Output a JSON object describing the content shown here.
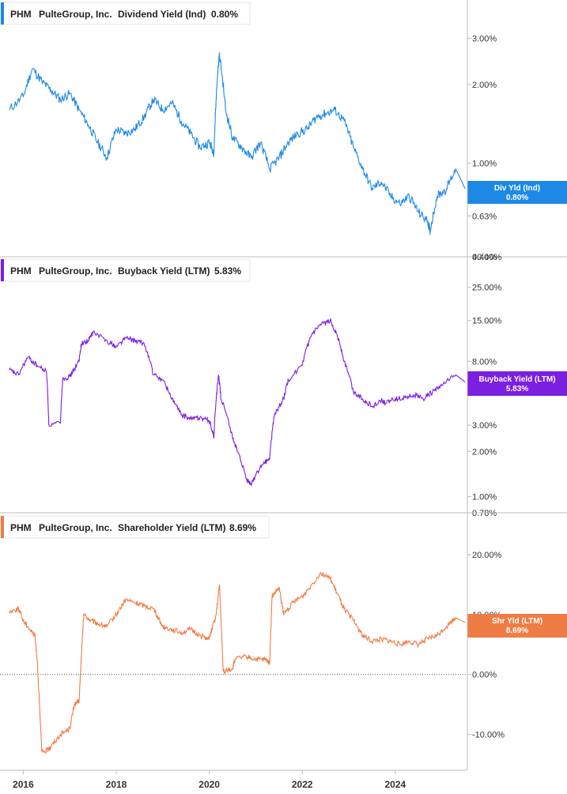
{
  "chart_data": [
    {
      "type": "line",
      "ticker": "PHM",
      "company": "PulteGroup, Inc.",
      "metric": "Dividend Yield (Ind)",
      "current_value": "0.80%",
      "badge_label": "Div Yld (Ind)",
      "badge_value": "0.80%",
      "color": "#1e88e5",
      "y_scale": "log",
      "ylim": [
        0.44,
        4.2
      ],
      "y_ticks": [
        0.44,
        0.63,
        1.0,
        2.0,
        3.0
      ],
      "y_tick_labels": [
        "0.44%",
        "0.63%",
        "1.00%",
        "2.00%",
        "3.00%"
      ],
      "x": [
        2015.7,
        2016.0,
        2016.2,
        2016.4,
        2016.6,
        2016.8,
        2017.0,
        2017.2,
        2017.4,
        2017.6,
        2017.8,
        2018.0,
        2018.2,
        2018.4,
        2018.6,
        2018.8,
        2019.0,
        2019.2,
        2019.4,
        2019.6,
        2019.8,
        2020.0,
        2020.1,
        2020.18,
        2020.22,
        2020.35,
        2020.5,
        2020.7,
        2020.9,
        2021.1,
        2021.3,
        2021.5,
        2021.7,
        2021.9,
        2022.1,
        2022.3,
        2022.5,
        2022.7,
        2022.9,
        2023.1,
        2023.3,
        2023.5,
        2023.7,
        2023.9,
        2024.1,
        2024.3,
        2024.5,
        2024.7,
        2024.75,
        2024.9,
        2025.1,
        2025.3,
        2025.5
      ],
      "values": [
        1.6,
        1.8,
        2.3,
        2.05,
        1.9,
        1.75,
        1.85,
        1.6,
        1.4,
        1.2,
        1.05,
        1.35,
        1.3,
        1.35,
        1.5,
        1.75,
        1.6,
        1.7,
        1.45,
        1.3,
        1.15,
        1.2,
        1.1,
        2.2,
        2.6,
        1.6,
        1.25,
        1.15,
        1.05,
        1.2,
        0.95,
        1.05,
        1.2,
        1.3,
        1.35,
        1.5,
        1.55,
        1.6,
        1.45,
        1.15,
        0.95,
        0.8,
        0.85,
        0.75,
        0.7,
        0.75,
        0.65,
        0.6,
        0.55,
        0.75,
        0.8,
        0.95,
        0.8
      ]
    },
    {
      "type": "line",
      "ticker": "PHM",
      "company": "PulteGroup, Inc.",
      "metric": "Buyback Yield (LTM)",
      "current_value": "5.83%",
      "badge_label": "Buyback Yield (LTM)",
      "badge_value": "5.83%",
      "color": "#7b1fe0",
      "y_scale": "log",
      "ylim": [
        0.78,
        40.0
      ],
      "y_ticks": [
        0.78,
        1.0,
        2.0,
        3.0,
        8.0,
        15.0,
        25.0,
        40.0
      ],
      "y_tick_labels": [
        "0.78%",
        "1.00%",
        "2.00%",
        "3.00%",
        "8.00%",
        "15.00%",
        "25.00%",
        "40.00%"
      ],
      "x": [
        2015.7,
        2015.9,
        2016.1,
        2016.3,
        2016.5,
        2016.55,
        2016.8,
        2016.85,
        2017.0,
        2017.2,
        2017.25,
        2017.4,
        2017.5,
        2017.8,
        2018.0,
        2018.2,
        2018.4,
        2018.6,
        2018.8,
        2019.0,
        2019.2,
        2019.4,
        2019.6,
        2019.8,
        2020.0,
        2020.1,
        2020.2,
        2020.25,
        2020.5,
        2020.6,
        2020.8,
        2020.9,
        2021.0,
        2021.2,
        2021.3,
        2021.4,
        2021.6,
        2021.7,
        2022.0,
        2022.2,
        2022.4,
        2022.6,
        2022.75,
        2022.9,
        2023.1,
        2023.3,
        2023.5,
        2023.7,
        2023.8,
        2024.0,
        2024.2,
        2024.4,
        2024.6,
        2024.8,
        2025.0,
        2025.3,
        2025.5
      ],
      "values": [
        7.0,
        6.5,
        8.5,
        7.5,
        6.8,
        3.0,
        3.1,
        6.2,
        6.3,
        8.0,
        10.5,
        11.0,
        12.5,
        11.0,
        10.0,
        11.5,
        11.0,
        10.5,
        6.5,
        6.0,
        4.5,
        3.5,
        3.3,
        3.4,
        3.2,
        2.5,
        6.5,
        4.5,
        2.5,
        2.0,
        1.3,
        1.2,
        1.4,
        1.7,
        1.8,
        3.5,
        4.5,
        6.0,
        7.5,
        12.0,
        14.0,
        15.0,
        12.0,
        8.0,
        5.0,
        4.5,
        4.0,
        4.4,
        4.2,
        4.5,
        4.6,
        4.8,
        4.5,
        5.0,
        5.5,
        6.5,
        5.83
      ]
    },
    {
      "type": "line",
      "ticker": "PHM",
      "company": "PulteGroup, Inc.",
      "metric": "Shareholder Yield (LTM)",
      "current_value": "8.69%",
      "badge_label": "Shr Yld (LTM)",
      "badge_value": "8.69%",
      "color": "#f07c45",
      "y_scale": "linear",
      "ylim": [
        -16,
        27
      ],
      "y_ticks": [
        -10,
        0,
        10,
        20
      ],
      "y_tick_labels": [
        "-10.00%",
        "0.00%",
        "10.00%",
        "20.00%"
      ],
      "x": [
        2015.7,
        2015.9,
        2016.0,
        2016.1,
        2016.25,
        2016.3,
        2016.4,
        2016.55,
        2016.6,
        2016.8,
        2017.0,
        2017.1,
        2017.2,
        2017.25,
        2017.3,
        2017.45,
        2017.6,
        2017.8,
        2018.0,
        2018.2,
        2018.4,
        2018.6,
        2018.8,
        2019.0,
        2019.2,
        2019.4,
        2019.6,
        2019.8,
        2020.0,
        2020.15,
        2020.22,
        2020.3,
        2020.5,
        2020.55,
        2020.8,
        2021.0,
        2021.2,
        2021.3,
        2021.35,
        2021.5,
        2021.6,
        2021.8,
        2022.0,
        2022.2,
        2022.4,
        2022.6,
        2022.75,
        2022.9,
        2023.1,
        2023.3,
        2023.5,
        2023.7,
        2023.9,
        2024.1,
        2024.3,
        2024.5,
        2024.7,
        2024.9,
        2025.1,
        2025.3,
        2025.5
      ],
      "values": [
        10.5,
        11.0,
        9.0,
        8.0,
        6.5,
        2.5,
        -13.0,
        -12.5,
        -12.0,
        -10.0,
        -9.0,
        -5.0,
        -4.5,
        3.0,
        10.0,
        9.0,
        8.5,
        8.0,
        10.0,
        12.5,
        12.0,
        11.5,
        11.0,
        8.0,
        7.5,
        7.0,
        7.5,
        6.5,
        6.0,
        10.0,
        15.0,
        0.5,
        1.0,
        2.5,
        3.0,
        2.5,
        2.5,
        2.0,
        13.0,
        14.5,
        10.0,
        12.0,
        13.0,
        15.0,
        17.0,
        16.0,
        13.5,
        11.0,
        9.0,
        6.5,
        5.5,
        6.0,
        5.5,
        5.0,
        5.5,
        5.0,
        6.0,
        6.5,
        8.0,
        9.5,
        8.69
      ]
    }
  ],
  "x_axis": {
    "ticks": [
      2016,
      2018,
      2020,
      2022,
      2024
    ],
    "tick_labels": [
      "2016",
      "2018",
      "2020",
      "2022",
      "2024"
    ],
    "xlim": [
      2015.5,
      2025.55
    ]
  }
}
